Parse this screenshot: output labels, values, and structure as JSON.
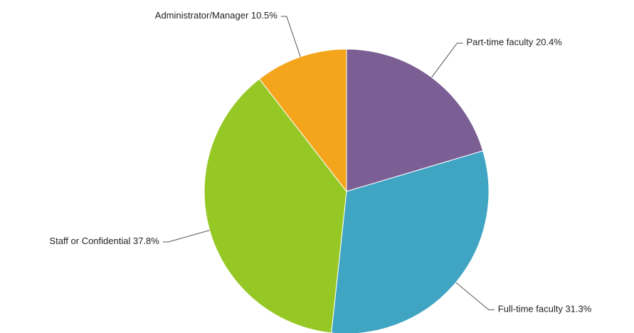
{
  "chart_data": {
    "type": "pie",
    "categories": [
      "Part-time faculty",
      "Full-time faculty",
      "Staff or Confidential",
      "Administrator/Manager"
    ],
    "values": [
      20.4,
      31.3,
      37.8,
      10.5
    ],
    "value_labels": [
      "20.4%",
      "31.3%",
      "37.8%",
      "10.5%"
    ],
    "colors": [
      "#7b5f94",
      "#40a4c3",
      "#96c825",
      "#f4a51c"
    ]
  }
}
